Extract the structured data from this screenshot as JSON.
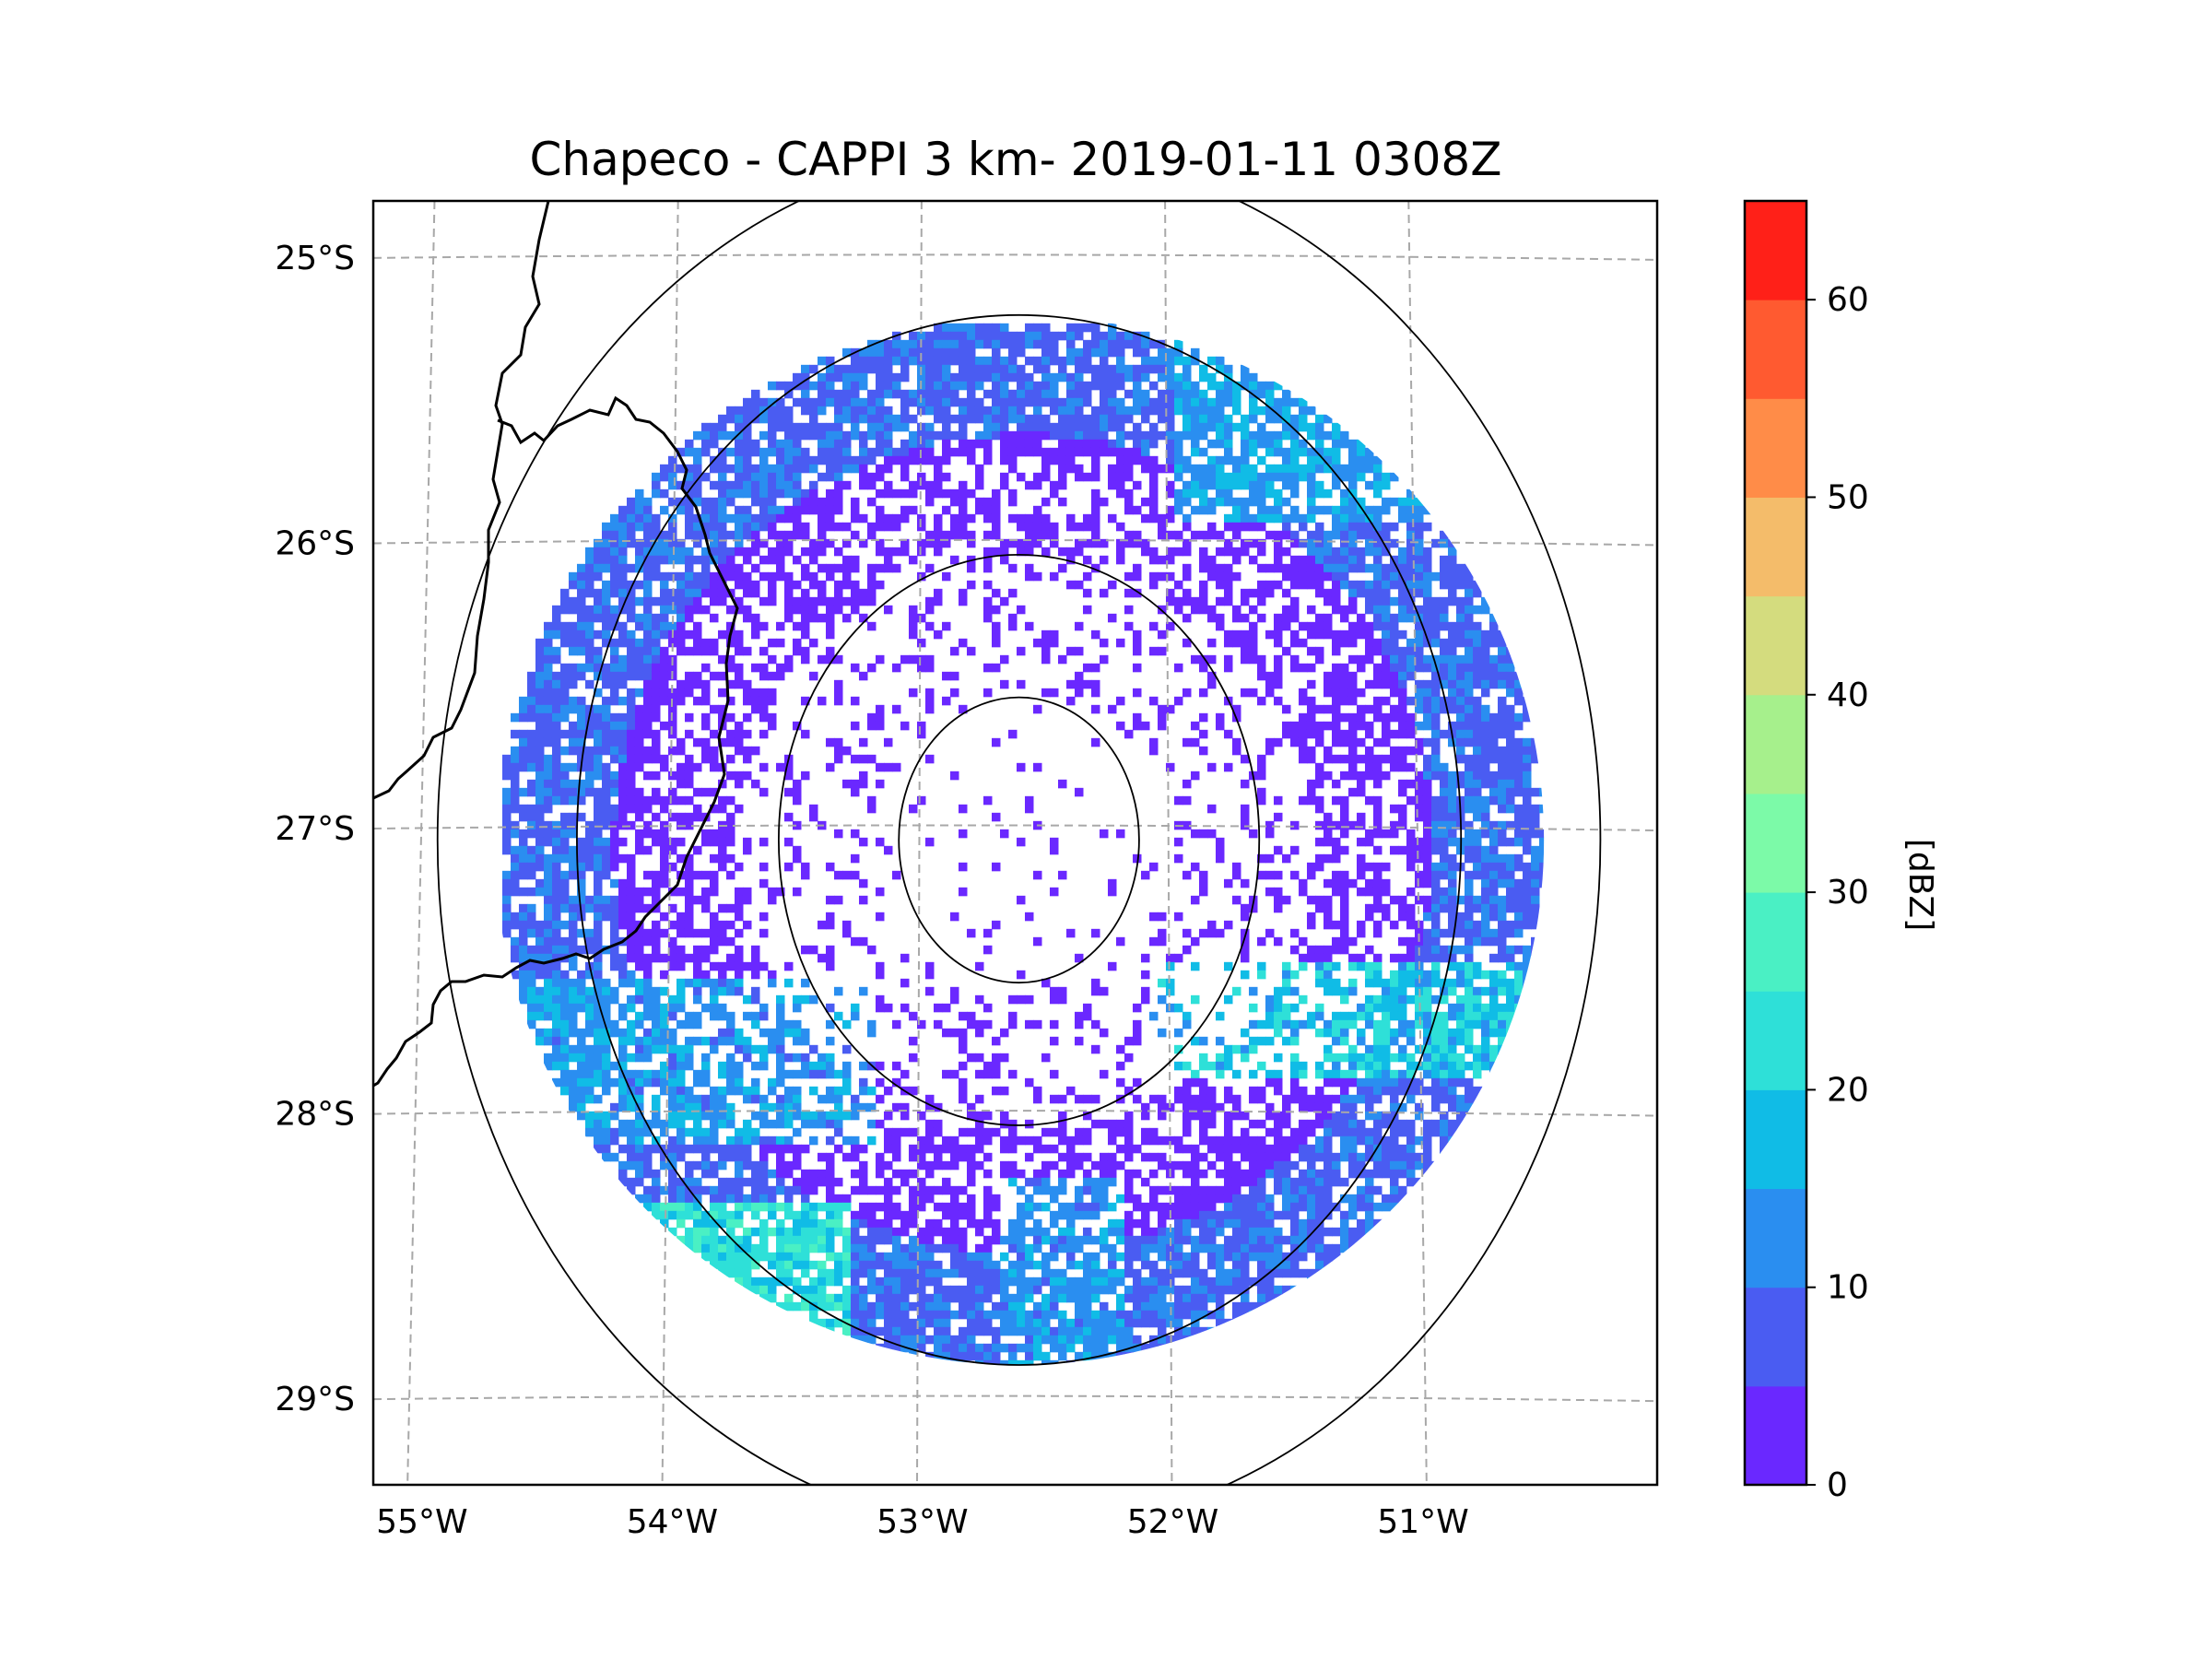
{
  "title": "Chapeco - CAPPI 3 km- 2019-01-11 0308Z",
  "map": {
    "lon_range": [
      -55.18,
      -50.05
    ],
    "lat_range": [
      -29.3,
      -24.8
    ],
    "lat_ticks": [
      {
        "value": -25,
        "label": "25°S"
      },
      {
        "value": -26,
        "label": "26°S"
      },
      {
        "value": -27,
        "label": "27°S"
      },
      {
        "value": -28,
        "label": "28°S"
      },
      {
        "value": -29,
        "label": "29°S"
      }
    ],
    "lon_ticks": [
      {
        "value": -55,
        "label": "55°W"
      },
      {
        "value": -54,
        "label": "54°W"
      },
      {
        "value": -53,
        "label": "53°W"
      },
      {
        "value": -52,
        "label": "52°W"
      },
      {
        "value": -51,
        "label": "51°W"
      }
    ],
    "radar_center": {
      "lon": -52.6,
      "lat": -27.04
    },
    "range_rings_deg": [
      0.5,
      1.0,
      1.84,
      2.42
    ],
    "data_coverage_radius_deg": 1.84
  },
  "colorbar": {
    "label": "[dBZ]",
    "min": 0,
    "max": 65,
    "bounds": [
      0,
      5,
      10,
      15,
      20,
      25,
      30,
      35,
      40,
      45,
      50,
      55,
      60,
      65
    ],
    "colors": [
      "#6a28ff",
      "#4a5cf2",
      "#2a8ef0",
      "#10bce6",
      "#2ee0d8",
      "#4af0c4",
      "#7cfaa8",
      "#a6f08c",
      "#d4dc7e",
      "#f4bc6a",
      "#ff8c48",
      "#ff5a30",
      "#ff2018"
    ],
    "ticks": [
      {
        "value": 0,
        "label": "0"
      },
      {
        "value": 10,
        "label": "10"
      },
      {
        "value": 20,
        "label": "20"
      },
      {
        "value": 30,
        "label": "30"
      },
      {
        "value": 40,
        "label": "40"
      },
      {
        "value": 50,
        "label": "50"
      },
      {
        "value": 60,
        "label": "60"
      }
    ]
  },
  "reflectivity_features": [
    {
      "region": "west edge",
      "dbz": 10
    },
    {
      "region": "north-east edge",
      "dbz": 15
    },
    {
      "region": "east band",
      "dbz": 20
    },
    {
      "region": "south-west band",
      "dbz": 15
    },
    {
      "region": "south",
      "dbz": 15
    },
    {
      "region": "south-west edge",
      "dbz": 25
    }
  ]
}
